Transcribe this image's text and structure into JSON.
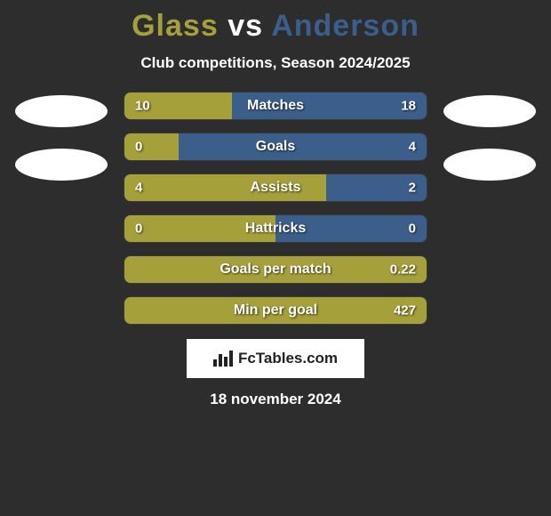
{
  "title": {
    "player1": "Glass",
    "vs": "vs",
    "player2": "Anderson",
    "player1_color": "#a6a03a",
    "vs_color": "#ffffff",
    "player2_color": "#3b5f8a"
  },
  "subtitle": "Club competitions, Season 2024/2025",
  "colors": {
    "left": "#a6a03a",
    "right": "#3b5f8a",
    "background": "#2d2d2d",
    "text": "#ffffff"
  },
  "bars": [
    {
      "label": "Matches",
      "left": "10",
      "right": "18",
      "left_pct": 35.7,
      "right_pct": 64.3
    },
    {
      "label": "Goals",
      "left": "0",
      "right": "4",
      "left_pct": 18.0,
      "right_pct": 82.0
    },
    {
      "label": "Assists",
      "left": "4",
      "right": "2",
      "left_pct": 66.7,
      "right_pct": 33.3
    },
    {
      "label": "Hattricks",
      "left": "0",
      "right": "0",
      "left_pct": 50.0,
      "right_pct": 50.0
    },
    {
      "label": "Goals per match",
      "left": "",
      "right": "0.22",
      "left_pct": 100.0,
      "right_pct": 0.0
    },
    {
      "label": "Min per goal",
      "left": "",
      "right": "427",
      "left_pct": 100.0,
      "right_pct": 0.0
    }
  ],
  "footer": {
    "logo_text": "FcTables.com",
    "date": "18 november 2024"
  }
}
